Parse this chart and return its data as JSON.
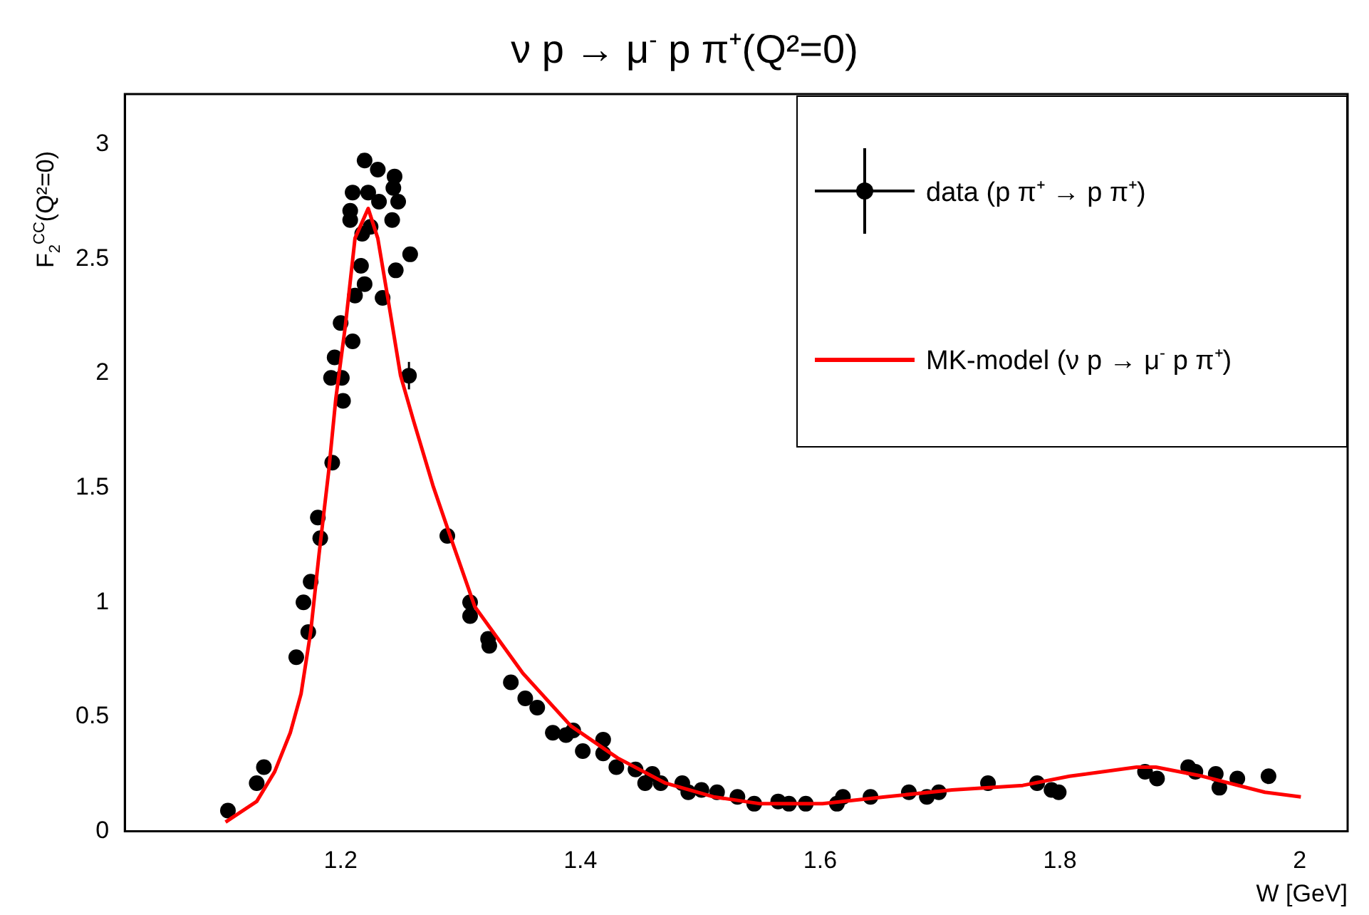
{
  "chart_data": {
    "type": "scatter",
    "title": "ν p → μ$^{-}$ p π⁺(Q²=0)",
    "xlabel": "W [GeV]",
    "ylabel": "F$_{2}$$^{CC}$(Q²=0)",
    "xlim": [
      1.02,
      2.04
    ],
    "ylim": [
      0,
      3.22
    ],
    "xticks": [
      1.2,
      1.4,
      1.6,
      1.8,
      2
    ],
    "yticks": [
      0,
      0.5,
      1,
      1.5,
      2,
      2.5,
      3
    ],
    "grid": false,
    "legend": "top right",
    "series": [
      {
        "name": "data (p π⁺ → p π⁺)",
        "type": "scatter",
        "color": "#000000",
        "marker": "circle",
        "x": [
          1.106,
          1.13,
          1.136,
          1.163,
          1.173,
          1.169,
          1.175,
          1.183,
          1.181,
          1.193,
          1.202,
          1.192,
          1.201,
          1.195,
          1.21,
          1.2,
          1.212,
          1.22,
          1.217,
          1.235,
          1.246,
          1.258,
          1.208,
          1.208,
          1.21,
          1.218,
          1.225,
          1.223,
          1.22,
          1.231,
          1.245,
          1.244,
          1.248,
          1.243,
          1.232,
          1.257,
          1.289,
          1.308,
          1.308,
          1.323,
          1.324,
          1.342,
          1.354,
          1.364,
          1.377,
          1.388,
          1.394,
          1.402,
          1.419,
          1.419,
          1.43,
          1.446,
          1.454,
          1.46,
          1.467,
          1.485,
          1.49,
          1.501,
          1.514,
          1.531,
          1.545,
          1.565,
          1.574,
          1.588,
          1.614,
          1.619,
          1.642,
          1.674,
          1.689,
          1.699,
          1.74,
          1.781,
          1.793,
          1.799,
          1.871,
          1.881,
          1.907,
          1.913,
          1.93,
          1.933,
          1.948,
          1.974
        ],
        "values": [
          0.09,
          0.21,
          0.28,
          0.76,
          0.87,
          1.0,
          1.09,
          1.28,
          1.37,
          1.61,
          1.88,
          1.98,
          1.98,
          2.07,
          2.14,
          2.22,
          2.34,
          2.39,
          2.47,
          2.33,
          2.45,
          2.52,
          2.67,
          2.71,
          2.79,
          2.61,
          2.64,
          2.79,
          2.93,
          2.89,
          2.86,
          2.81,
          2.75,
          2.67,
          2.75,
          1.99,
          1.29,
          1.0,
          0.94,
          0.84,
          0.81,
          0.65,
          0.58,
          0.54,
          0.43,
          0.42,
          0.44,
          0.35,
          0.4,
          0.34,
          0.28,
          0.27,
          0.21,
          0.25,
          0.21,
          0.21,
          0.17,
          0.18,
          0.17,
          0.15,
          0.12,
          0.13,
          0.12,
          0.12,
          0.12,
          0.15,
          0.15,
          0.17,
          0.15,
          0.17,
          0.21,
          0.21,
          0.18,
          0.17,
          0.26,
          0.23,
          0.28,
          0.26,
          0.25,
          0.19,
          0.23,
          0.24
        ],
        "errors": [
          null,
          null,
          null,
          null,
          null,
          null,
          null,
          null,
          null,
          null,
          null,
          null,
          null,
          null,
          null,
          null,
          null,
          null,
          null,
          null,
          null,
          null,
          null,
          null,
          null,
          null,
          null,
          null,
          null,
          null,
          null,
          null,
          null,
          null,
          null,
          0.06,
          null,
          null,
          null,
          null,
          null,
          null,
          null,
          null,
          null,
          null,
          null,
          null,
          null,
          null,
          null,
          null,
          null,
          null,
          null,
          null,
          null,
          null,
          null,
          null,
          null,
          null,
          null,
          null,
          null,
          null,
          null,
          null,
          null,
          null,
          null,
          null,
          null,
          null,
          null,
          null,
          null,
          null,
          null,
          null,
          null,
          null
        ]
      },
      {
        "name": "MK-model (ν p → μ$^{-}$ p π⁺)",
        "type": "line",
        "color": "#ff0000",
        "marker": "none",
        "line_style": "solid",
        "x": [
          1.104,
          1.13,
          1.145,
          1.158,
          1.167,
          1.175,
          1.182,
          1.19,
          1.196,
          1.204,
          1.212,
          1.223,
          1.231,
          1.24,
          1.25,
          1.261,
          1.277,
          1.294,
          1.312,
          1.352,
          1.392,
          1.431,
          1.471,
          1.511,
          1.55,
          1.602,
          1.654,
          1.71,
          1.769,
          1.808,
          1.864,
          1.88,
          1.919,
          1.971,
          2.001
        ],
        "values": [
          0.04,
          0.13,
          0.26,
          0.43,
          0.6,
          0.87,
          1.21,
          1.57,
          1.89,
          2.21,
          2.59,
          2.72,
          2.59,
          2.31,
          1.99,
          1.79,
          1.51,
          1.25,
          0.98,
          0.69,
          0.46,
          0.32,
          0.21,
          0.15,
          0.12,
          0.12,
          0.15,
          0.18,
          0.2,
          0.24,
          0.28,
          0.28,
          0.24,
          0.17,
          0.15
        ]
      }
    ]
  }
}
